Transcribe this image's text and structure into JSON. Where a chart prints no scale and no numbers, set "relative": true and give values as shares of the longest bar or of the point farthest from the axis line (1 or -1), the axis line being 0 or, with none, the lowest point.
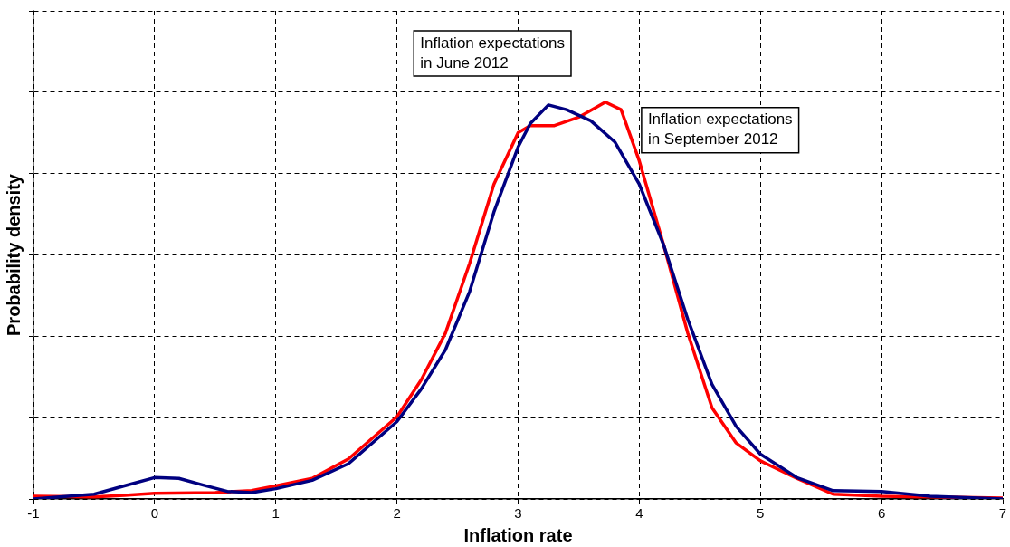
{
  "chart_data": {
    "type": "line",
    "relative": true,
    "xlabel": "Inflation rate",
    "ylabel": "Probability density",
    "xlim": [
      -1,
      7
    ],
    "xticks": [
      -1,
      0,
      1,
      2,
      3,
      4,
      5,
      6,
      7
    ],
    "grid": true,
    "legend": false,
    "tick_labels": "x",
    "marker": "none",
    "line_style": "solid",
    "series": [
      {
        "name": "Inflation expectations in June 2012",
        "color": "#000080",
        "x": [
          -1,
          -0.5,
          -0.25,
          0,
          0.2,
          0.4,
          0.6,
          0.8,
          1,
          1.3,
          1.6,
          2,
          2.2,
          2.4,
          2.6,
          2.8,
          3,
          3.1,
          3.25,
          3.4,
          3.6,
          3.8,
          4,
          4.2,
          4.4,
          4.6,
          4.8,
          5,
          5.3,
          5.6,
          6,
          6.4,
          7
        ],
        "values": [
          0,
          0.012,
          0.033,
          0.054,
          0.052,
          0.035,
          0.019,
          0.016,
          0.026,
          0.047,
          0.089,
          0.195,
          0.277,
          0.376,
          0.523,
          0.723,
          0.887,
          0.946,
          0.993,
          0.981,
          0.953,
          0.899,
          0.793,
          0.641,
          0.453,
          0.289,
          0.183,
          0.113,
          0.054,
          0.021,
          0.019,
          0.007,
          0
        ]
      },
      {
        "name": "Inflation expectations in September 2012",
        "color": "#ff0000",
        "x": [
          -1,
          -0.5,
          -0.25,
          0,
          0.5,
          0.8,
          1,
          1.3,
          1.6,
          2,
          2.2,
          2.4,
          2.6,
          2.8,
          3,
          3.1,
          3.3,
          3.5,
          3.72,
          3.85,
          4,
          4.2,
          4.4,
          4.6,
          4.8,
          5,
          5.3,
          5.6,
          6,
          7
        ],
        "values": [
          0.007,
          0.005,
          0.009,
          0.014,
          0.016,
          0.021,
          0.033,
          0.052,
          0.101,
          0.207,
          0.3,
          0.418,
          0.594,
          0.793,
          0.923,
          0.941,
          0.941,
          0.962,
          1,
          0.981,
          0.852,
          0.641,
          0.418,
          0.23,
          0.141,
          0.096,
          0.052,
          0.012,
          0.007,
          0.002
        ]
      }
    ]
  }
}
